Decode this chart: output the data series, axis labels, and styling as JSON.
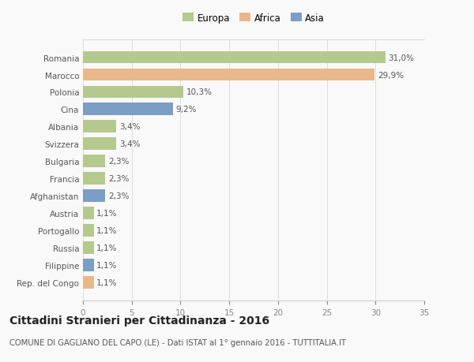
{
  "categories": [
    "Romania",
    "Marocco",
    "Polonia",
    "Cina",
    "Albania",
    "Svizzera",
    "Bulgaria",
    "Francia",
    "Afghanistan",
    "Austria",
    "Portogallo",
    "Russia",
    "Filippine",
    "Rep. del Congo"
  ],
  "values": [
    31.0,
    29.9,
    10.3,
    9.2,
    3.4,
    3.4,
    2.3,
    2.3,
    2.3,
    1.1,
    1.1,
    1.1,
    1.1,
    1.1
  ],
  "labels": [
    "31,0%",
    "29,9%",
    "10,3%",
    "9,2%",
    "3,4%",
    "3,4%",
    "2,3%",
    "2,3%",
    "2,3%",
    "1,1%",
    "1,1%",
    "1,1%",
    "1,1%",
    "1,1%"
  ],
  "continent": [
    "Europa",
    "Africa",
    "Europa",
    "Asia",
    "Europa",
    "Europa",
    "Europa",
    "Europa",
    "Asia",
    "Europa",
    "Europa",
    "Europa",
    "Asia",
    "Africa"
  ],
  "colors": {
    "Europa": "#b5c98e",
    "Africa": "#e8b88a",
    "Asia": "#7b9ec4"
  },
  "legend_labels": [
    "Europa",
    "Africa",
    "Asia"
  ],
  "legend_colors": [
    "#b5c98e",
    "#e8b88a",
    "#7b9ec4"
  ],
  "title": "Cittadini Stranieri per Cittadinanza - 2016",
  "subtitle": "COMUNE DI GAGLIANO DEL CAPO (LE) - Dati ISTAT al 1° gennaio 2016 - TUTTITALIA.IT",
  "xlim": [
    0,
    35
  ],
  "xticks": [
    0,
    5,
    10,
    15,
    20,
    25,
    30,
    35
  ],
  "background_color": "#f9f9f9",
  "bar_height": 0.72,
  "label_fontsize": 7.5,
  "tick_fontsize": 7.5,
  "title_fontsize": 10,
  "subtitle_fontsize": 7.2
}
